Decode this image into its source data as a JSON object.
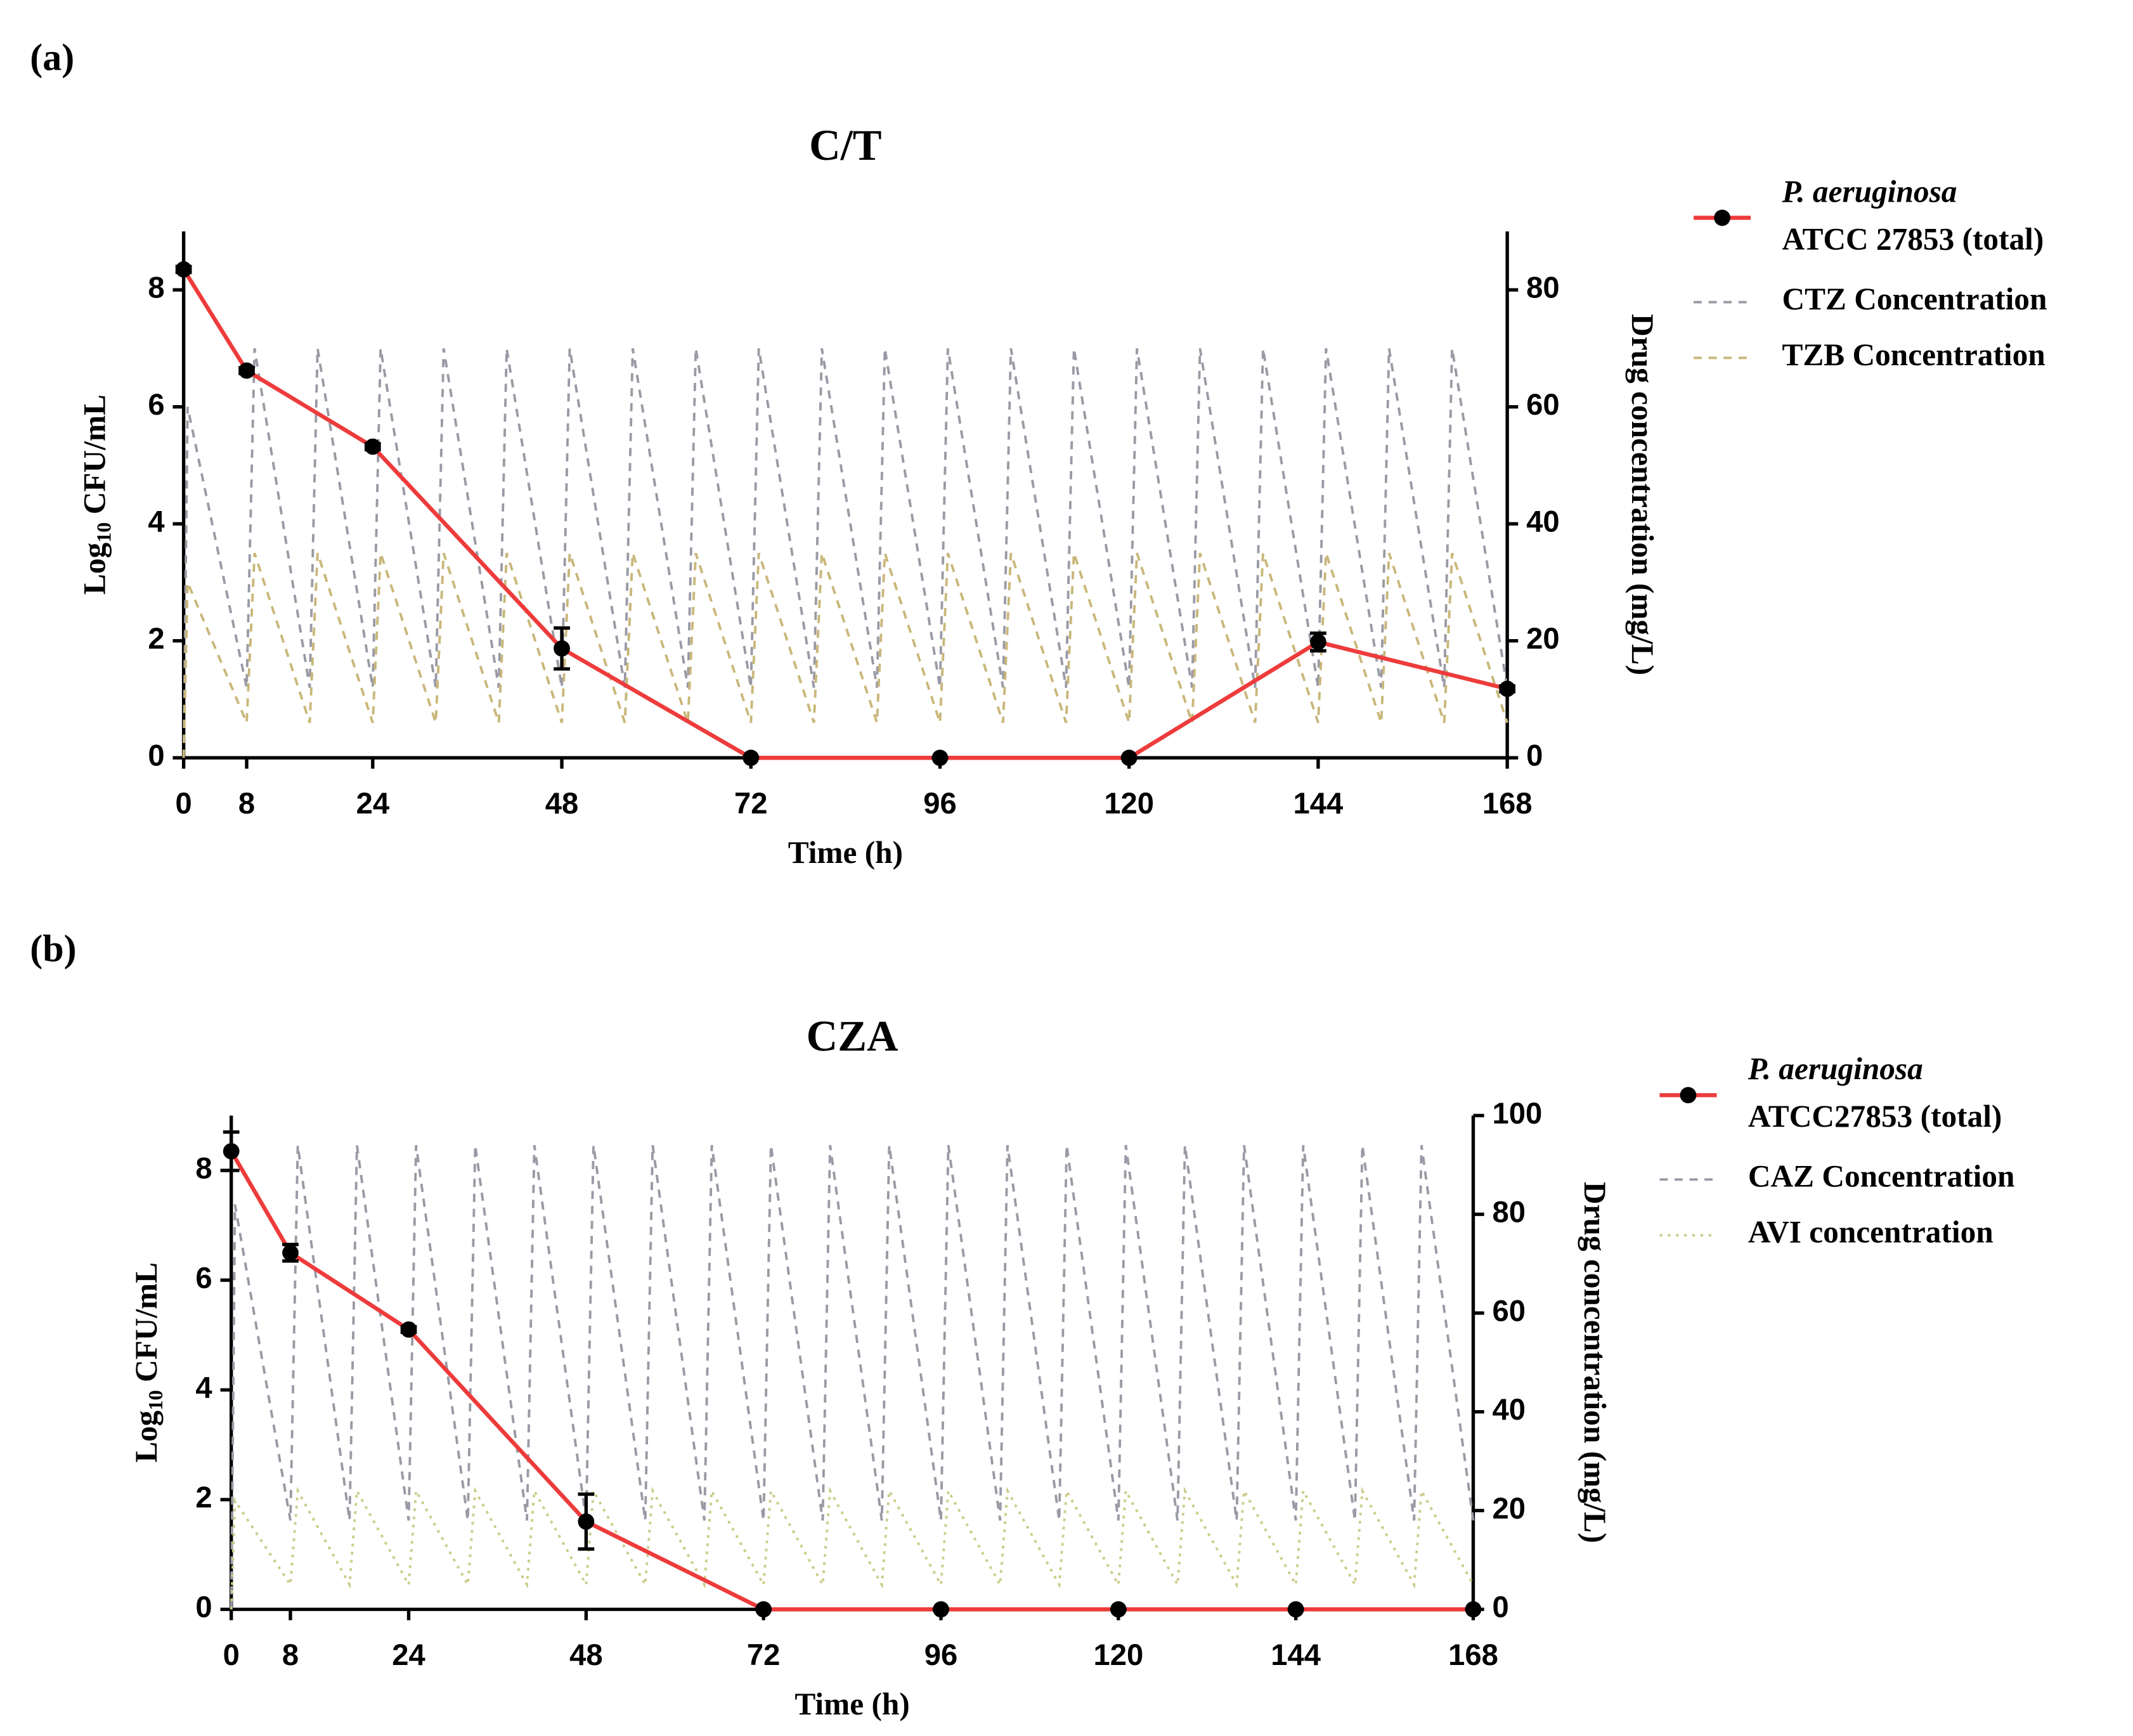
{
  "chart_data": [
    {
      "type": "line",
      "panel_label": "(a)",
      "title": "C/T",
      "xlabel": "Time (h)",
      "ylabel": [
        "Log",
        "10",
        " CFU/mL"
      ],
      "y2label": "Drug concentration (mg/L)",
      "xlim": [
        0,
        168
      ],
      "xticks": [
        0,
        8,
        24,
        48,
        72,
        96,
        120,
        144,
        168
      ],
      "ylim": [
        0,
        9
      ],
      "yticks": [
        0,
        2,
        4,
        6,
        8
      ],
      "y2lim": [
        0,
        90
      ],
      "y2ticks": [
        0,
        20,
        40,
        60,
        80
      ],
      "series": [
        {
          "name": [
            "P. aeruginosa",
            "ATCC 27853 (total)"
          ],
          "color": "#ee3b3b",
          "style": "solid",
          "markers": true,
          "x": [
            0,
            8,
            24,
            48,
            72,
            96,
            120,
            144,
            168
          ],
          "values": [
            8.35,
            6.62,
            5.32,
            1.87,
            0,
            0,
            0,
            1.98,
            1.18
          ],
          "errors": [
            0.05,
            0.05,
            0.05,
            0.35,
            0,
            0,
            0,
            0.15,
            0.05
          ]
        },
        {
          "name": "CTZ Concentration",
          "color": "#9a9aa6",
          "style": "dashed",
          "axis": "y2",
          "x": [
            0,
            0.5,
            8,
            9,
            16,
            17,
            24,
            25,
            32,
            33,
            40,
            41,
            48,
            49,
            56,
            57,
            64,
            65,
            72,
            73,
            80,
            81,
            88,
            89,
            96,
            97,
            104,
            105,
            112,
            113,
            120,
            121,
            128,
            129,
            136,
            137,
            144,
            145,
            152,
            153,
            160,
            161,
            168
          ],
          "values": [
            0,
            60,
            12,
            70,
            12,
            70,
            12,
            70,
            12,
            70,
            12,
            70,
            12,
            70,
            12,
            70,
            12,
            70,
            12,
            70,
            12,
            70,
            12,
            70,
            12,
            70,
            12,
            70,
            12,
            70,
            12,
            70,
            12,
            70,
            12,
            70,
            12,
            70,
            12,
            70,
            12,
            70,
            12
          ]
        },
        {
          "name": "TZB Concentration",
          "color": "#c9b77a",
          "style": "dashed",
          "axis": "y2",
          "x": [
            0,
            0.5,
            8,
            9,
            16,
            17,
            24,
            25,
            32,
            33,
            40,
            41,
            48,
            49,
            56,
            57,
            64,
            65,
            72,
            73,
            80,
            81,
            88,
            89,
            96,
            97,
            104,
            105,
            112,
            113,
            120,
            121,
            128,
            129,
            136,
            137,
            144,
            145,
            152,
            153,
            160,
            161,
            168
          ],
          "values": [
            0,
            30,
            6,
            35,
            6,
            35,
            6,
            35,
            6,
            35,
            6,
            35,
            6,
            35,
            6,
            35,
            6,
            35,
            6,
            35,
            6,
            35,
            6,
            35,
            6,
            35,
            6,
            35,
            6,
            35,
            6,
            35,
            6,
            35,
            6,
            35,
            6,
            35,
            6,
            35,
            6,
            35,
            6
          ]
        }
      ]
    },
    {
      "type": "line",
      "panel_label": "(b)",
      "title": "CZA",
      "xlabel": "Time (h)",
      "ylabel": [
        "Log",
        "10",
        " CFU/mL"
      ],
      "y2label": "Drug concentration (mg/L)",
      "xlim": [
        0,
        168
      ],
      "xticks": [
        0,
        8,
        24,
        48,
        72,
        96,
        120,
        144,
        168
      ],
      "ylim": [
        0,
        9
      ],
      "yticks": [
        0,
        2,
        4,
        6,
        8
      ],
      "y2lim": [
        0,
        100
      ],
      "y2ticks": [
        0,
        20,
        40,
        60,
        80,
        100
      ],
      "series": [
        {
          "name": [
            "P. aeruginosa",
            "ATCC27853 (total)"
          ],
          "color": "#ee3b3b",
          "style": "solid",
          "markers": true,
          "x": [
            0,
            8,
            24,
            48,
            72,
            96,
            120,
            144,
            168
          ],
          "values": [
            8.35,
            6.5,
            5.1,
            1.6,
            0,
            0,
            0,
            0,
            0
          ],
          "errors": [
            0.35,
            0.15,
            0.05,
            0.5,
            0,
            0,
            0,
            0,
            0
          ]
        },
        {
          "name": "CAZ Concentration",
          "color": "#9a9aa6",
          "style": "dashed",
          "axis": "y2",
          "x": [
            0,
            0.5,
            8,
            9,
            16,
            17,
            24,
            25,
            32,
            33,
            40,
            41,
            48,
            49,
            56,
            57,
            64,
            65,
            72,
            73,
            80,
            81,
            88,
            89,
            96,
            97,
            104,
            105,
            112,
            113,
            120,
            121,
            128,
            129,
            136,
            137,
            144,
            145,
            152,
            153,
            160,
            161,
            168
          ],
          "values": [
            0,
            82,
            18,
            94,
            18,
            94,
            18,
            94,
            18,
            94,
            18,
            94,
            18,
            94,
            18,
            94,
            18,
            94,
            18,
            94,
            18,
            94,
            18,
            94,
            18,
            94,
            18,
            94,
            18,
            94,
            18,
            94,
            18,
            94,
            18,
            94,
            18,
            94,
            18,
            94,
            18,
            94,
            18
          ]
        },
        {
          "name": "AVI concentration",
          "color": "#cccc8a",
          "style": "dotted",
          "axis": "y2",
          "x": [
            0,
            0.5,
            8,
            9,
            16,
            17,
            24,
            25,
            32,
            33,
            40,
            41,
            48,
            49,
            56,
            57,
            64,
            65,
            72,
            73,
            80,
            81,
            88,
            89,
            96,
            97,
            104,
            105,
            112,
            113,
            120,
            121,
            128,
            129,
            136,
            137,
            144,
            145,
            152,
            153,
            160,
            161,
            168
          ],
          "values": [
            0,
            22,
            5,
            24,
            5,
            24,
            5,
            24,
            5,
            24,
            5,
            24,
            5,
            24,
            5,
            24,
            5,
            24,
            5,
            24,
            5,
            24,
            5,
            24,
            5,
            24,
            5,
            24,
            5,
            24,
            5,
            24,
            5,
            24,
            5,
            24,
            5,
            24,
            5,
            24,
            5,
            24,
            5
          ]
        }
      ]
    }
  ]
}
